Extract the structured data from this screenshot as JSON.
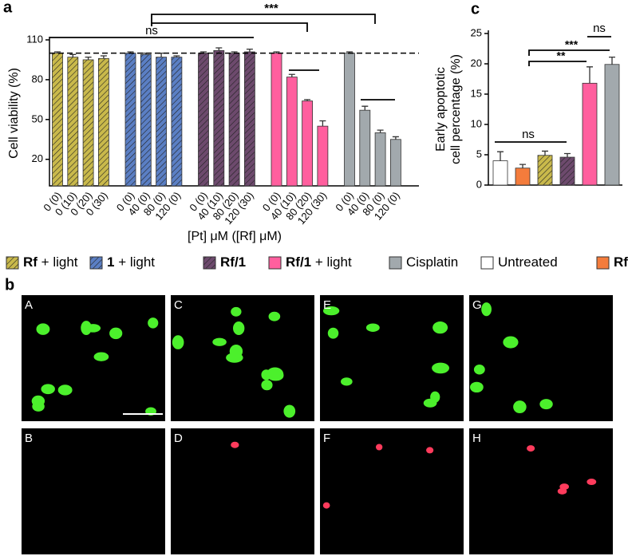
{
  "chart_data": [
    {
      "type": "bar",
      "panel": "a",
      "ylabel": "Cell viability (%)",
      "xlabel": "[Pt] μM ([Rf] μM)",
      "ylim": [
        0,
        110
      ],
      "yticks": [
        20,
        50,
        80,
        110
      ],
      "reference_line": 100,
      "annotations": [
        "ns",
        "***"
      ],
      "groups": [
        {
          "color": "#c9b94b",
          "hatched": true,
          "categories": [
            "0 (0)",
            "0 (10)",
            "0 (20)",
            "0 (30)"
          ],
          "values": [
            100,
            97,
            95,
            96
          ],
          "errors": [
            1,
            2,
            2,
            2
          ]
        },
        {
          "color": "#5b7fc4",
          "hatched": true,
          "categories": [
            "0 (0)",
            "40 (0)",
            "80 (0)",
            "120 (0)"
          ],
          "values": [
            100,
            99,
            97,
            97
          ],
          "errors": [
            1,
            1,
            3,
            1
          ]
        },
        {
          "color": "#6d4a6d",
          "hatched": true,
          "categories": [
            "0 (0)",
            "40 (10)",
            "80 (20)",
            "120 (30)"
          ],
          "values": [
            100,
            102,
            100,
            101
          ],
          "errors": [
            1,
            2,
            1,
            2
          ]
        },
        {
          "color": "#ff5f9e",
          "hatched": false,
          "categories": [
            "0 (0)",
            "40 (10)",
            "80 (20)",
            "120 (30)"
          ],
          "values": [
            100,
            82,
            64,
            45
          ],
          "errors": [
            1,
            2,
            1,
            4
          ]
        },
        {
          "color": "#a2a9ad",
          "hatched": false,
          "categories": [
            "0 (0)",
            "40 (0)",
            "80 (0)",
            "120 (0)"
          ],
          "values": [
            100,
            57,
            40,
            35
          ],
          "errors": [
            1,
            3,
            2,
            2
          ]
        }
      ]
    },
    {
      "type": "bar",
      "panel": "c",
      "ylabel": [
        "Early apoptotic",
        "cell percentage (%)"
      ],
      "ylim": [
        0,
        25
      ],
      "yticks": [
        0,
        5,
        10,
        15,
        20,
        25
      ],
      "annotations": [
        "ns",
        "**",
        "***",
        "ns"
      ],
      "categories": [
        null,
        null,
        null,
        null,
        null,
        null
      ],
      "values": [
        4.0,
        2.8,
        4.9,
        4.6,
        16.8,
        19.9
      ],
      "errors": [
        1.5,
        0.6,
        0.7,
        0.6,
        2.7,
        1.2
      ],
      "colors": [
        "#ffffff",
        "#f47c3c",
        "#c9b94b",
        "#6d4a6d",
        "#ff5f9e",
        "#a2a9ad"
      ],
      "hatched": [
        false,
        false,
        true,
        true,
        false,
        false
      ]
    }
  ],
  "legend": {
    "items": [
      {
        "bold": "Rf",
        "text": " + light",
        "color": "#c9b94b",
        "hatched": true
      },
      {
        "bold": "1",
        "text": " + light",
        "color": "#5b7fc4",
        "hatched": true
      },
      {
        "bold": "Rf/1",
        "color": "#6d4a6d",
        "hatched": true
      },
      {
        "bold": "Rf/1",
        "text": " + light",
        "color": "#ff5f9e",
        "hatched": false
      },
      {
        "text": "Cisplatin",
        "color": "#a2a9ad",
        "hatched": false
      },
      {
        "text": "Untreated",
        "color": "#ffffff",
        "hatched": false
      },
      {
        "bold": "Rf",
        "color": "#f47c3c",
        "hatched": false
      }
    ]
  },
  "panel_b": {
    "label": "b",
    "images": [
      "A",
      "B",
      "C",
      "D",
      "E",
      "F",
      "G",
      "H"
    ]
  }
}
